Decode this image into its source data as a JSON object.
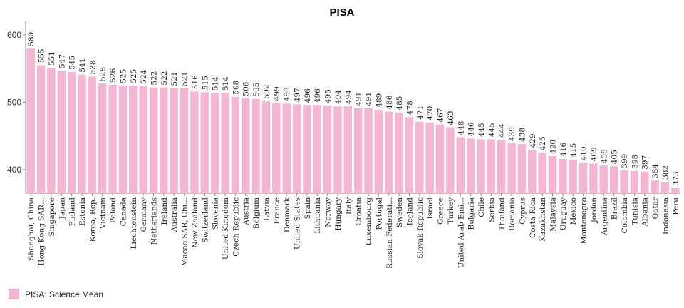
{
  "chart_data": {
    "type": "bar",
    "title": "PISA",
    "xlabel": "",
    "ylabel": "",
    "ylim": [
      365,
      620
    ],
    "yticks": [
      400,
      500,
      600
    ],
    "grid": false,
    "legend_position": "bottom-left",
    "bar_color": "#f4b6d2",
    "legend": [
      "PISA: Science Mean"
    ],
    "categories": [
      "Shanghai, China",
      "Hong Kong SAR...",
      "Singapore",
      "Japan",
      "Finland",
      "Estonia",
      "Korea, Rep.",
      "Vietnam",
      "Poland",
      "Canada",
      "Liechtenstein",
      "Germany",
      "Netherlands",
      "Ireland",
      "Australia",
      "Macao SAR, Chi...",
      "New Zealand",
      "Switzerland",
      "Slovenia",
      "United Kingdom",
      "Czech Republic",
      "Austria",
      "Belgium",
      "Latvia",
      "France",
      "Denmark",
      "United States",
      "Spain",
      "Lithuania",
      "Norway",
      "Hungary",
      "Italy",
      "Croatia",
      "Luxembourg",
      "Portugal",
      "Russian Federati...",
      "Sweden",
      "Iceland",
      "Slovak Republic",
      "Israel",
      "Greece",
      "Turkey",
      "United Arab Emi...",
      "Bulgaria",
      "Chile",
      "Serbia",
      "Thailand",
      "Romania",
      "Cyprus",
      "Costa Rica",
      "Kazakhstan",
      "Malaysia",
      "Uruguay",
      "Mexico",
      "Montenegro",
      "Jordan",
      "Argentina",
      "Brazil",
      "Colombia",
      "Tunisia",
      "Albania",
      "Qatar",
      "Indonesia",
      "Peru"
    ],
    "series": [
      {
        "name": "PISA: Science Mean",
        "values": [
          580,
          555,
          551,
          547,
          545,
          541,
          538,
          528,
          526,
          525,
          525,
          524,
          522,
          522,
          521,
          521,
          516,
          515,
          514,
          514,
          508,
          506,
          505,
          502,
          499,
          498,
          497,
          496,
          496,
          495,
          494,
          494,
          491,
          491,
          489,
          486,
          485,
          478,
          471,
          470,
          467,
          463,
          448,
          446,
          445,
          445,
          444,
          439,
          438,
          429,
          425,
          420,
          416,
          415,
          410,
          409,
          406,
          405,
          399,
          398,
          397,
          384,
          382,
          373
        ]
      }
    ]
  }
}
